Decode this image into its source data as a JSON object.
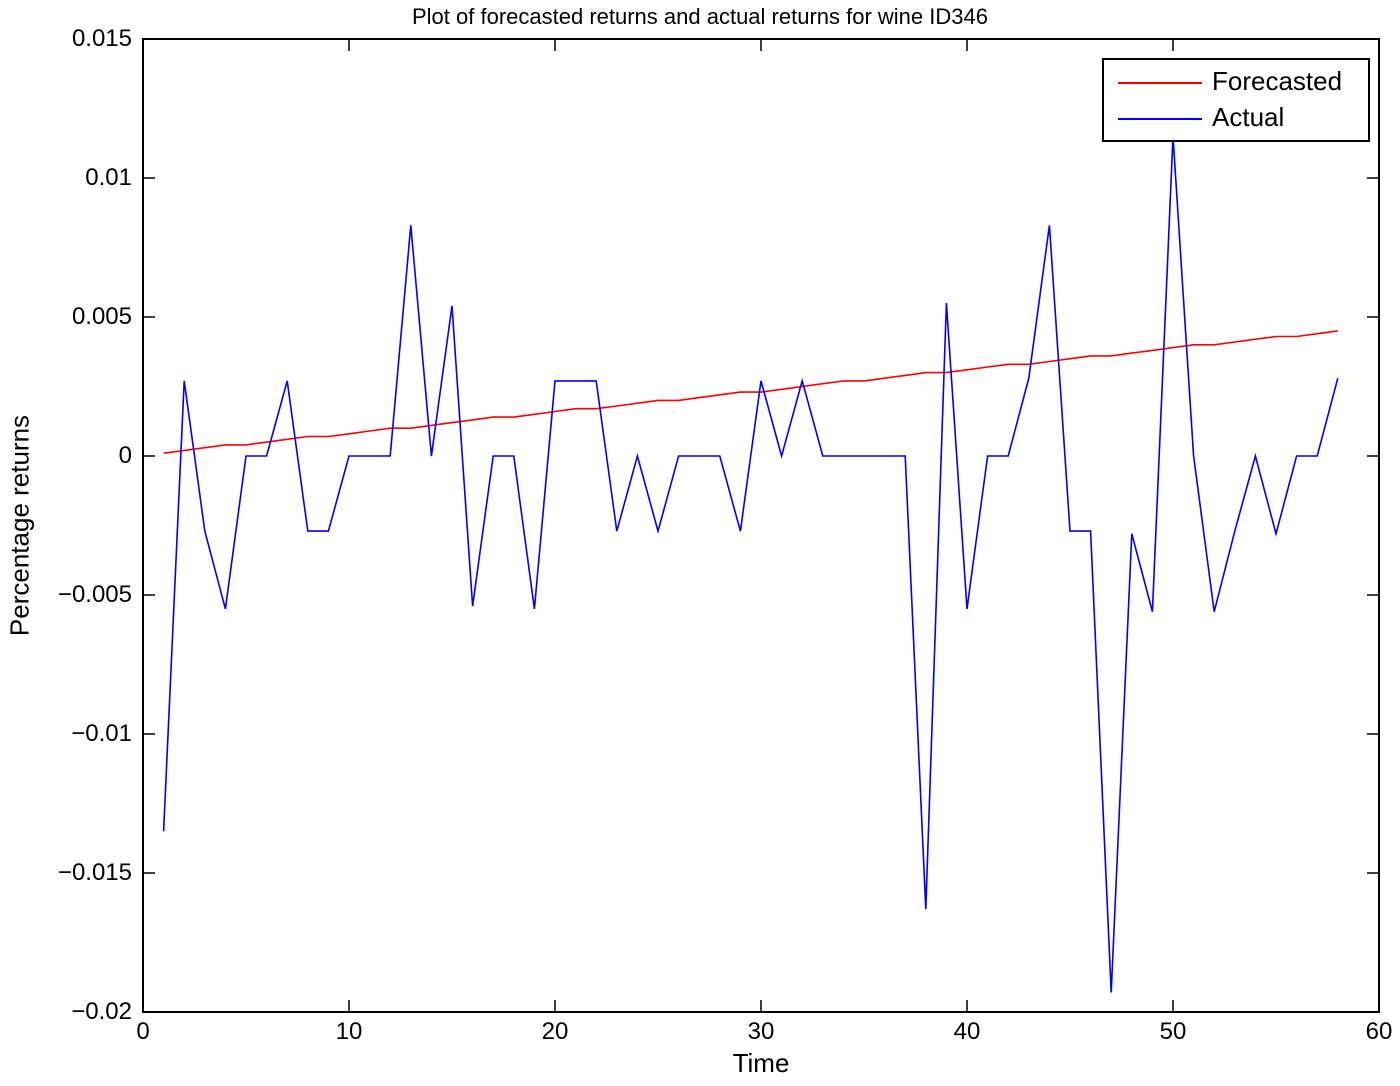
{
  "chart_data": {
    "type": "line",
    "title": "Plot of forecasted returns and actual returns for wine ID346",
    "xlabel": "Time",
    "ylabel": "Percentage returns",
    "xlim": [
      0,
      60
    ],
    "ylim": [
      -0.02,
      0.015
    ],
    "xticks": [
      "0",
      "10",
      "20",
      "30",
      "40",
      "50",
      "60"
    ],
    "xtick_values": [
      0,
      10,
      20,
      30,
      40,
      50,
      60
    ],
    "yticks": [
      "0.015",
      "0.01",
      "0.005",
      "0",
      "−0.005",
      "−0.01",
      "−0.015",
      "−0.02"
    ],
    "ytick_values": [
      0.015,
      0.01,
      0.005,
      0,
      -0.005,
      -0.01,
      -0.015,
      -0.02
    ],
    "grid": false,
    "legend_position": "upper right",
    "x": [
      1,
      2,
      3,
      4,
      5,
      6,
      7,
      8,
      9,
      10,
      11,
      12,
      13,
      14,
      15,
      16,
      17,
      18,
      19,
      20,
      21,
      22,
      23,
      24,
      25,
      26,
      27,
      28,
      29,
      30,
      31,
      32,
      33,
      34,
      35,
      36,
      37,
      38,
      39,
      40,
      41,
      42,
      43,
      44,
      45,
      46,
      47,
      48,
      49,
      50,
      51,
      52,
      53,
      54,
      55,
      56,
      57,
      58
    ],
    "series": [
      {
        "name": "Forecasted",
        "color": "#ff0000",
        "values": [
          0.0001,
          0.0002,
          0.0003,
          0.0004,
          0.0004,
          0.0005,
          0.0006,
          0.0007,
          0.0007,
          0.0008,
          0.0009,
          0.001,
          0.001,
          0.0011,
          0.0012,
          0.0013,
          0.0014,
          0.0014,
          0.0015,
          0.0016,
          0.0017,
          0.0017,
          0.0018,
          0.0019,
          0.002,
          0.002,
          0.0021,
          0.0022,
          0.0023,
          0.0023,
          0.0024,
          0.0025,
          0.0026,
          0.0027,
          0.0027,
          0.0028,
          0.0029,
          0.003,
          0.003,
          0.0031,
          0.0032,
          0.0033,
          0.0033,
          0.0034,
          0.0035,
          0.0036,
          0.0036,
          0.0037,
          0.0038,
          0.0039,
          0.004,
          0.004,
          0.0041,
          0.0042,
          0.0043,
          0.0043,
          0.0044,
          0.0045
        ]
      },
      {
        "name": "Actual",
        "color": "#0000ff",
        "values": [
          -0.0135,
          0.0027,
          -0.0027,
          -0.0055,
          0,
          0,
          0.0027,
          -0.0027,
          -0.0027,
          0,
          0,
          0,
          0.0083,
          0,
          0.0054,
          -0.0054,
          0,
          0,
          -0.0055,
          0.0027,
          0.0027,
          0.0027,
          -0.0027,
          0,
          -0.0027,
          0,
          0,
          0,
          -0.0027,
          0.0027,
          0,
          0.0027,
          0,
          0,
          0,
          0,
          0,
          -0.0163,
          0.0055,
          -0.0055,
          0,
          0,
          0.0028,
          0.0083,
          -0.0027,
          -0.0027,
          -0.0193,
          -0.0028,
          -0.0056,
          0.0115,
          0,
          -0.0056,
          -0.0027,
          0,
          -0.0028,
          0,
          0,
          0.0028
        ]
      }
    ]
  },
  "legend": {
    "items": [
      {
        "label": "Forecasted",
        "color": "#ff0000"
      },
      {
        "label": "Actual",
        "color": "#0000ff"
      }
    ]
  }
}
